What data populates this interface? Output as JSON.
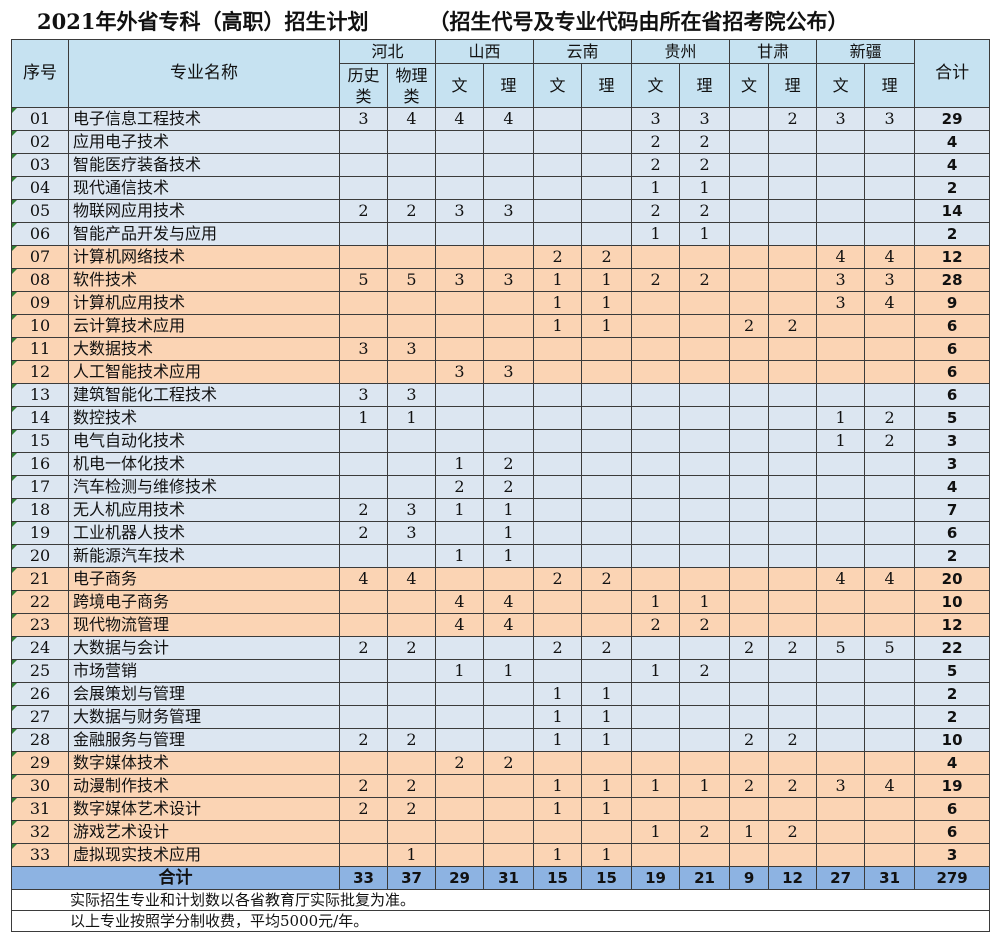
{
  "title": {
    "main": "2021年外省专科（高职）招生计划",
    "note": "（招生代号及专业代码由所在省招考院公布）"
  },
  "headers": {
    "index": "序号",
    "major": "专业名称",
    "total": "合计",
    "provinces": [
      "河北",
      "山西",
      "云南",
      "贵州",
      "甘肃",
      "新疆"
    ],
    "subcolumns": [
      "历史类",
      "物理类",
      "文",
      "理",
      "文",
      "理",
      "文",
      "理",
      "文",
      "理",
      "文",
      "理"
    ]
  },
  "rows": [
    {
      "idx": "01",
      "name": "电子信息工程技术",
      "color": "blue",
      "cells": [
        "3",
        "4",
        "4",
        "4",
        "",
        "",
        "3",
        "3",
        "",
        "2",
        "3",
        "3"
      ],
      "total": "29"
    },
    {
      "idx": "02",
      "name": "应用电子技术",
      "color": "blue",
      "cells": [
        "",
        "",
        "",
        "",
        "",
        "",
        "2",
        "2",
        "",
        "",
        "",
        ""
      ],
      "total": "4"
    },
    {
      "idx": "03",
      "name": "智能医疗装备技术",
      "color": "blue",
      "cells": [
        "",
        "",
        "",
        "",
        "",
        "",
        "2",
        "2",
        "",
        "",
        "",
        ""
      ],
      "total": "4"
    },
    {
      "idx": "04",
      "name": "现代通信技术",
      "color": "blue",
      "cells": [
        "",
        "",
        "",
        "",
        "",
        "",
        "1",
        "1",
        "",
        "",
        "",
        ""
      ],
      "total": "2"
    },
    {
      "idx": "05",
      "name": "物联网应用技术",
      "color": "blue",
      "cells": [
        "2",
        "2",
        "3",
        "3",
        "",
        "",
        "2",
        "2",
        "",
        "",
        "",
        ""
      ],
      "total": "14"
    },
    {
      "idx": "06",
      "name": "智能产品开发与应用",
      "color": "blue",
      "cells": [
        "",
        "",
        "",
        "",
        "",
        "",
        "1",
        "1",
        "",
        "",
        "",
        ""
      ],
      "total": "2"
    },
    {
      "idx": "07",
      "name": "计算机网络技术",
      "color": "orange",
      "cells": [
        "",
        "",
        "",
        "",
        "2",
        "2",
        "",
        "",
        "",
        "",
        "4",
        "4"
      ],
      "total": "12"
    },
    {
      "idx": "08",
      "name": "软件技术",
      "color": "orange",
      "cells": [
        "5",
        "5",
        "3",
        "3",
        "1",
        "1",
        "2",
        "2",
        "",
        "",
        "3",
        "3"
      ],
      "total": "28"
    },
    {
      "idx": "09",
      "name": "计算机应用技术",
      "color": "orange",
      "cells": [
        "",
        "",
        "",
        "",
        "1",
        "1",
        "",
        "",
        "",
        "",
        "3",
        "4"
      ],
      "total": "9"
    },
    {
      "idx": "10",
      "name": "云计算技术应用",
      "color": "orange",
      "cells": [
        "",
        "",
        "",
        "",
        "1",
        "1",
        "",
        "",
        "2",
        "2",
        "",
        ""
      ],
      "total": "6"
    },
    {
      "idx": "11",
      "name": "大数据技术",
      "color": "orange",
      "cells": [
        "3",
        "3",
        "",
        "",
        "",
        "",
        "",
        "",
        "",
        "",
        "",
        ""
      ],
      "total": "6"
    },
    {
      "idx": "12",
      "name": "人工智能技术应用",
      "color": "orange",
      "cells": [
        "",
        "",
        "3",
        "3",
        "",
        "",
        "",
        "",
        "",
        "",
        "",
        ""
      ],
      "total": "6"
    },
    {
      "idx": "13",
      "name": "建筑智能化工程技术",
      "color": "blue",
      "cells": [
        "3",
        "3",
        "",
        "",
        "",
        "",
        "",
        "",
        "",
        "",
        "",
        ""
      ],
      "total": "6"
    },
    {
      "idx": "14",
      "name": "数控技术",
      "color": "blue",
      "cells": [
        "1",
        "1",
        "",
        "",
        "",
        "",
        "",
        "",
        "",
        "",
        "1",
        "2"
      ],
      "total": "5"
    },
    {
      "idx": "15",
      "name": "电气自动化技术",
      "color": "blue",
      "cells": [
        "",
        "",
        "",
        "",
        "",
        "",
        "",
        "",
        "",
        "",
        "1",
        "2"
      ],
      "total": "3"
    },
    {
      "idx": "16",
      "name": "机电一体化技术",
      "color": "blue",
      "cells": [
        "",
        "",
        "1",
        "2",
        "",
        "",
        "",
        "",
        "",
        "",
        "",
        ""
      ],
      "total": "3"
    },
    {
      "idx": "17",
      "name": "汽车检测与维修技术",
      "color": "blue",
      "cells": [
        "",
        "",
        "2",
        "2",
        "",
        "",
        "",
        "",
        "",
        "",
        "",
        ""
      ],
      "total": "4"
    },
    {
      "idx": "18",
      "name": "无人机应用技术",
      "color": "blue",
      "cells": [
        "2",
        "3",
        "1",
        "1",
        "",
        "",
        "",
        "",
        "",
        "",
        "",
        ""
      ],
      "total": "7"
    },
    {
      "idx": "19",
      "name": "工业机器人技术",
      "color": "blue",
      "cells": [
        "2",
        "3",
        "",
        "1",
        "",
        "",
        "",
        "",
        "",
        "",
        "",
        ""
      ],
      "total": "6"
    },
    {
      "idx": "20",
      "name": "新能源汽车技术",
      "color": "blue",
      "cells": [
        "",
        "",
        "1",
        "1",
        "",
        "",
        "",
        "",
        "",
        "",
        "",
        ""
      ],
      "total": "2"
    },
    {
      "idx": "21",
      "name": "电子商务",
      "color": "orange",
      "cells": [
        "4",
        "4",
        "",
        "",
        "2",
        "2",
        "",
        "",
        "",
        "",
        "4",
        "4"
      ],
      "total": "20"
    },
    {
      "idx": "22",
      "name": "跨境电子商务",
      "color": "orange",
      "cells": [
        "",
        "",
        "4",
        "4",
        "",
        "",
        "1",
        "1",
        "",
        "",
        "",
        ""
      ],
      "total": "10"
    },
    {
      "idx": "23",
      "name": "现代物流管理",
      "color": "orange",
      "cells": [
        "",
        "",
        "4",
        "4",
        "",
        "",
        "2",
        "2",
        "",
        "",
        "",
        ""
      ],
      "total": "12"
    },
    {
      "idx": "24",
      "name": "大数据与会计",
      "color": "blue",
      "cells": [
        "2",
        "2",
        "",
        "",
        "2",
        "2",
        "",
        "",
        "2",
        "2",
        "5",
        "5"
      ],
      "total": "22"
    },
    {
      "idx": "25",
      "name": "市场营销",
      "color": "blue",
      "cells": [
        "",
        "",
        "1",
        "1",
        "",
        "",
        "1",
        "2",
        "",
        "",
        "",
        ""
      ],
      "total": "5"
    },
    {
      "idx": "26",
      "name": "会展策划与管理",
      "color": "blue",
      "cells": [
        "",
        "",
        "",
        "",
        "1",
        "1",
        "",
        "",
        "",
        "",
        "",
        ""
      ],
      "total": "2"
    },
    {
      "idx": "27",
      "name": "大数据与财务管理",
      "color": "blue",
      "cells": [
        "",
        "",
        "",
        "",
        "1",
        "1",
        "",
        "",
        "",
        "",
        "",
        ""
      ],
      "total": "2"
    },
    {
      "idx": "28",
      "name": "金融服务与管理",
      "color": "blue",
      "cells": [
        "2",
        "2",
        "",
        "",
        "1",
        "1",
        "",
        "",
        "2",
        "2",
        "",
        ""
      ],
      "total": "10"
    },
    {
      "idx": "29",
      "name": "数字媒体技术",
      "color": "orange",
      "cells": [
        "",
        "",
        "2",
        "2",
        "",
        "",
        "",
        "",
        "",
        "",
        "",
        ""
      ],
      "total": "4"
    },
    {
      "idx": "30",
      "name": "动漫制作技术",
      "color": "orange",
      "cells": [
        "2",
        "2",
        "",
        "",
        "1",
        "1",
        "1",
        "1",
        "2",
        "2",
        "3",
        "4"
      ],
      "total": "19"
    },
    {
      "idx": "31",
      "name": "数字媒体艺术设计",
      "color": "orange",
      "cells": [
        "2",
        "2",
        "",
        "",
        "1",
        "1",
        "",
        "",
        "",
        "",
        "",
        ""
      ],
      "total": "6"
    },
    {
      "idx": "32",
      "name": "游戏艺术设计",
      "color": "orange",
      "cells": [
        "",
        "",
        "",
        "",
        "",
        "",
        "1",
        "2",
        "1",
        "2",
        "",
        ""
      ],
      "total": "6"
    },
    {
      "idx": "33",
      "name": "虚拟现实技术应用",
      "color": "orange",
      "cells": [
        "",
        "1",
        "",
        "",
        "1",
        "1",
        "",
        "",
        "",
        "",
        "",
        ""
      ],
      "total": "3"
    }
  ],
  "summary": {
    "label": "合计",
    "cells": [
      "33",
      "37",
      "29",
      "31",
      "15",
      "15",
      "19",
      "21",
      "9",
      "12",
      "27",
      "31"
    ],
    "total": "279"
  },
  "notes": [
    "实际招生专业和计划数以各省教育厅实际批复为准。",
    "以上专业按照学分制收费，平均5000元/年。"
  ],
  "colors": {
    "header_bg": "#c6e2f1",
    "row_blue": "#dce6f1",
    "row_orange": "#fbd4b4",
    "summary_bg": "#8db3e2"
  }
}
